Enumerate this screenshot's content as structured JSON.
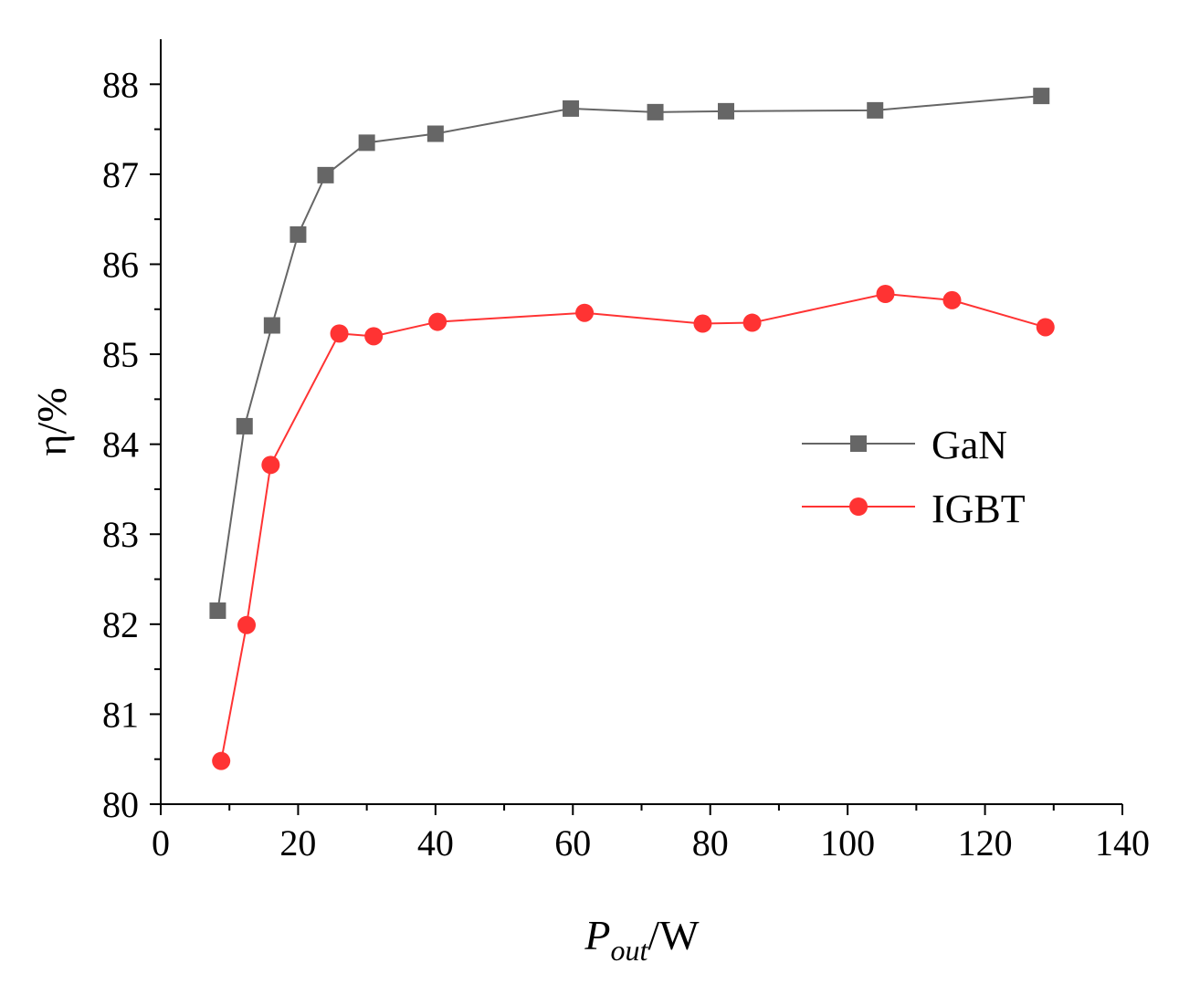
{
  "chart_data": {
    "type": "line",
    "title": "",
    "xlabel": {
      "main": "P",
      "sub": "out",
      "unit": "/W"
    },
    "ylabel": "η/%",
    "xlim": [
      0,
      140
    ],
    "ylim": [
      80,
      88.5
    ],
    "x_ticks": [
      0,
      20,
      40,
      60,
      80,
      100,
      120,
      140
    ],
    "y_ticks": [
      80,
      81,
      82,
      83,
      84,
      85,
      86,
      87,
      88
    ],
    "x_tick_labels": [
      "0",
      "20",
      "40",
      "60",
      "80",
      "100",
      "120",
      "140"
    ],
    "y_tick_labels": [
      "80",
      "81",
      "82",
      "83",
      "84",
      "85",
      "86",
      "87",
      "88"
    ],
    "grid": false,
    "legend_position": "center-right",
    "series": [
      {
        "name": "GaN",
        "color": "#666666",
        "marker": "square",
        "x": [
          8.3,
          12.2,
          16.2,
          20.0,
          24.0,
          30.0,
          40.0,
          59.7,
          72.0,
          82.3,
          104.0,
          128.2
        ],
        "y": [
          82.15,
          84.2,
          85.32,
          86.33,
          86.99,
          87.35,
          87.45,
          87.73,
          87.69,
          87.7,
          87.71,
          87.87
        ]
      },
      {
        "name": "IGBT",
        "color": "#ff3333",
        "marker": "circle",
        "x": [
          8.8,
          12.5,
          16.0,
          26.0,
          31.0,
          40.3,
          61.7,
          78.9,
          86.1,
          105.5,
          115.2,
          128.8
        ],
        "y": [
          80.48,
          81.99,
          83.77,
          85.23,
          85.2,
          85.36,
          85.46,
          85.34,
          85.35,
          85.67,
          85.6,
          85.3
        ]
      }
    ]
  }
}
